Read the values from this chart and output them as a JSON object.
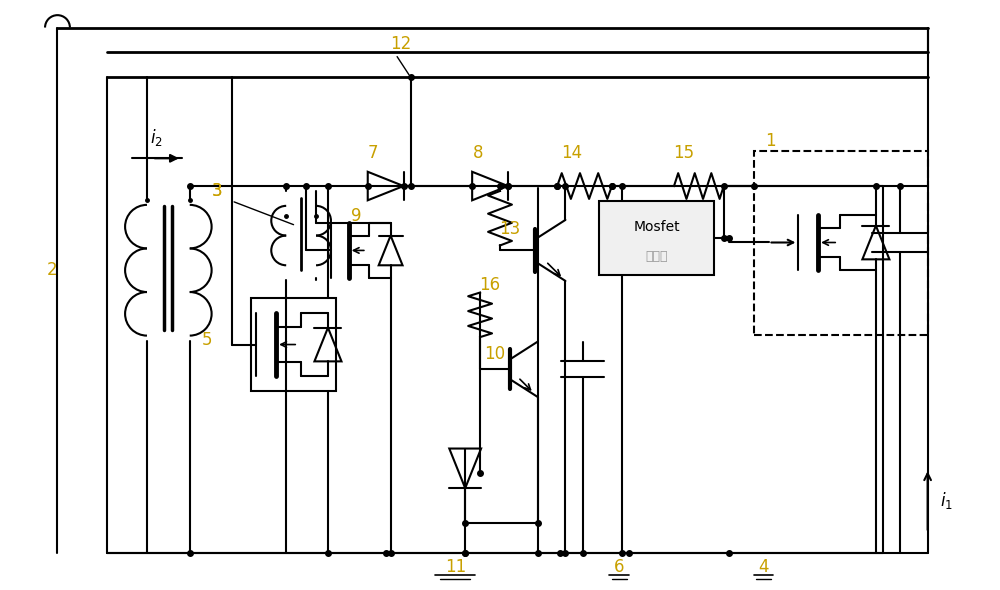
{
  "bg": "#ffffff",
  "lc": "#000000",
  "lw": 1.5,
  "fig_w": 10.0,
  "fig_h": 5.9,
  "mosfet_text1": "Mosfet",
  "mosfet_text2": "驱动器",
  "label_color": "#c8a000",
  "font_size": 12
}
